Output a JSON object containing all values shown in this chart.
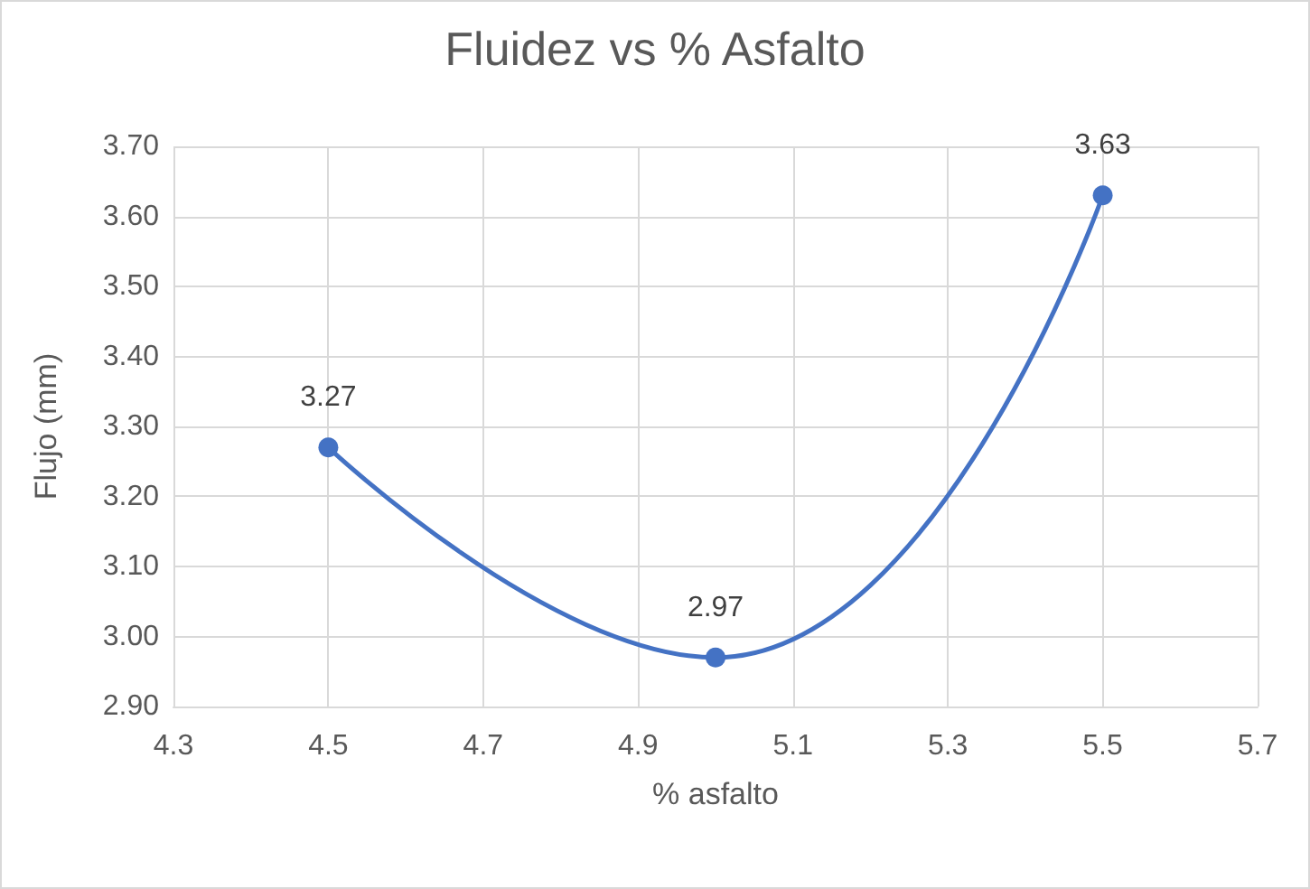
{
  "chart_data": {
    "type": "line",
    "title": "Fluidez vs % Asfalto",
    "xlabel": "% asfalto",
    "ylabel": "Flujo (mm)",
    "x": [
      4.5,
      5.0,
      5.5
    ],
    "series": [
      {
        "color": "#4472c4",
        "values": [
          3.27,
          2.97,
          3.63
        ]
      }
    ],
    "xlim": [
      4.3,
      5.7
    ],
    "xticks": [
      4.3,
      4.5,
      4.7,
      4.9,
      5.1,
      5.3,
      5.5,
      5.7
    ],
    "ylim": [
      2.9,
      3.7
    ],
    "yticks": [
      {
        "value": 2.9,
        "label": "2.90"
      },
      {
        "value": 3.0,
        "label": "3.00"
      },
      {
        "value": 3.1,
        "label": "3.10"
      },
      {
        "value": 3.2,
        "label": "3.20"
      },
      {
        "value": 3.3,
        "label": "3.30"
      },
      {
        "value": 3.4,
        "label": "3.40"
      },
      {
        "value": 3.5,
        "label": "3.50"
      },
      {
        "value": 3.6,
        "label": "3.60"
      },
      {
        "value": 3.7,
        "label": "3.70"
      }
    ],
    "grid": true,
    "marker": "circle",
    "line_style": "solid",
    "data_labels": true
  }
}
